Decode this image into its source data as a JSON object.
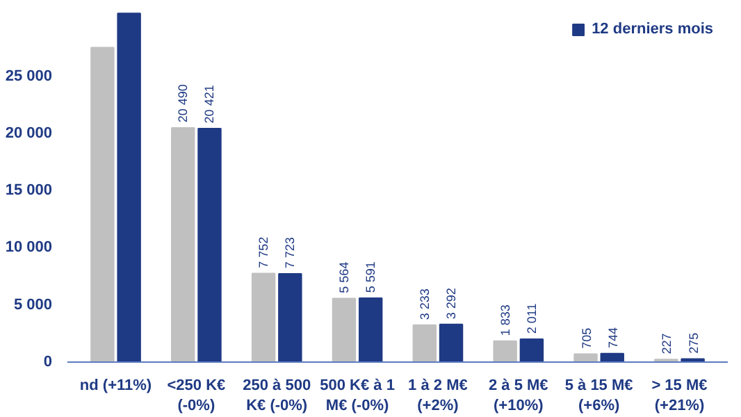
{
  "chart_data": {
    "type": "bar",
    "categories": [
      "nd (+11%)",
      "<250 K€ (-0%)",
      "250 à 500 K€ (-0%)",
      "500 K€ à 1 M€ (-0%)",
      "1 à 2 M€ (+2%)",
      "2 à 5 M€ (+10%)",
      "5 à 15 M€ (+6%)",
      "> 15 M€ (+21%)"
    ],
    "series": [
      {
        "color": "#c0c0c0",
        "values": [
          27500,
          20490,
          7752,
          5564,
          3233,
          1833,
          705,
          227
        ],
        "value_labels": [
          null,
          "20 490",
          "7 752",
          "5 564",
          "3 233",
          "1 833",
          "705",
          "227"
        ]
      },
      {
        "name": "12 derniers mois",
        "color": "#1f3a84",
        "values": [
          30500,
          20421,
          7723,
          5591,
          3292,
          2011,
          744,
          275
        ],
        "value_labels": [
          null,
          "20 421",
          "7 723",
          "5 591",
          "3 292",
          "2 011",
          "744",
          "275"
        ]
      }
    ],
    "ylim": [
      0,
      31000
    ],
    "yticks": [
      {
        "value": 0,
        "label": "0"
      },
      {
        "value": 5000,
        "label": "5 000"
      },
      {
        "value": 10000,
        "label": "10 000"
      },
      {
        "value": 15000,
        "label": "15 000"
      },
      {
        "value": 20000,
        "label": "20 000"
      },
      {
        "value": 25000,
        "label": "25 000"
      }
    ],
    "grid": false,
    "legend": "top right"
  }
}
